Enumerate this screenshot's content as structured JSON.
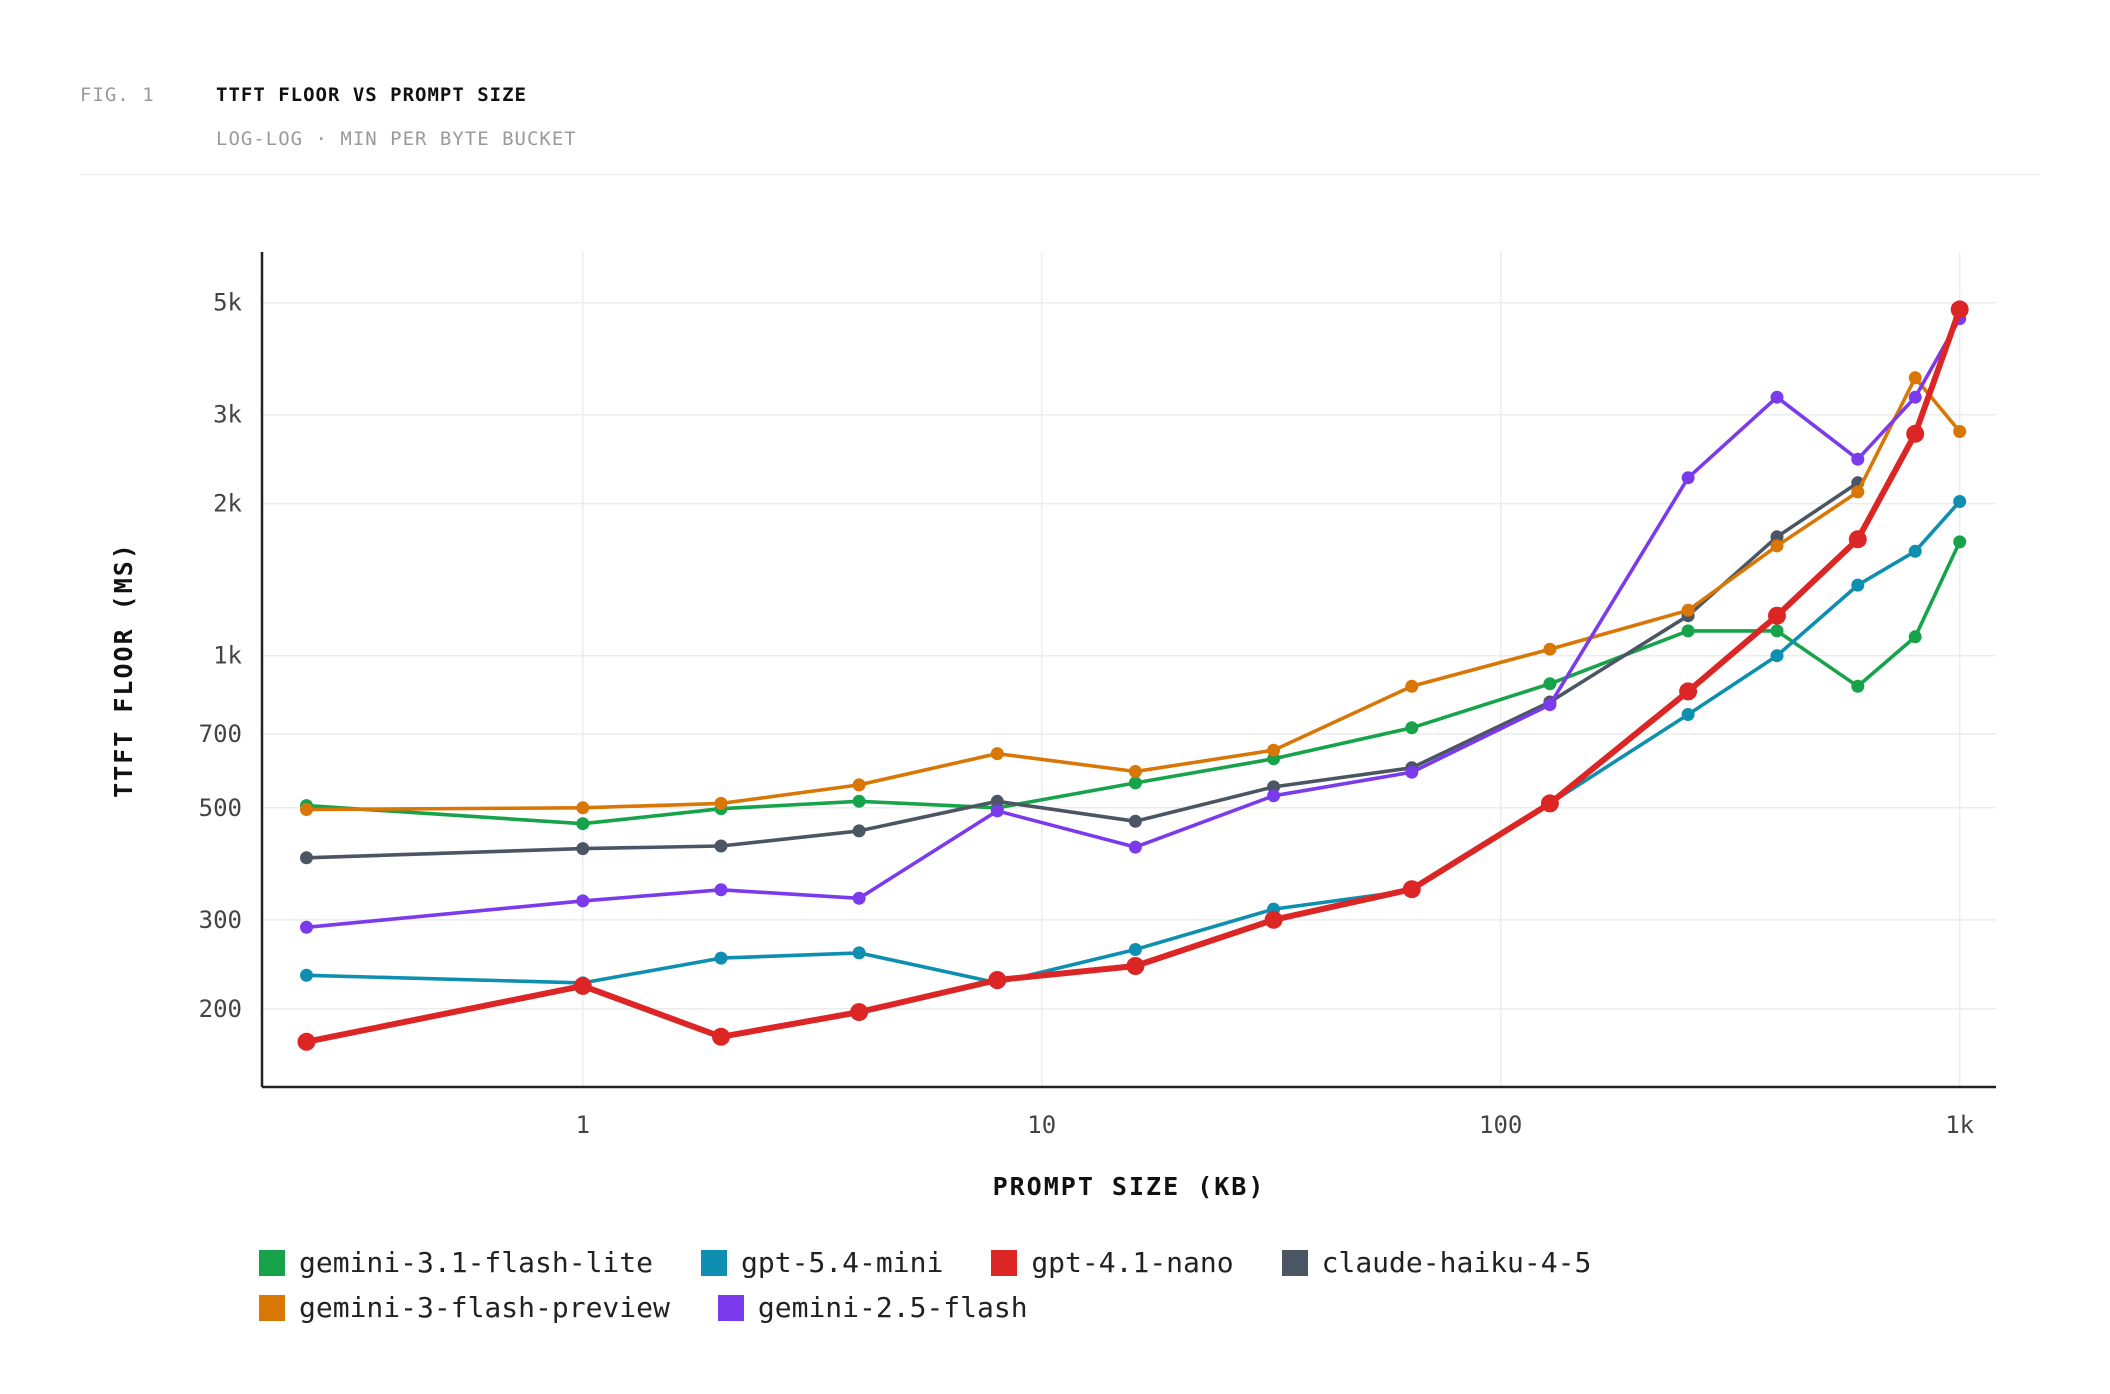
{
  "figure": {
    "label": "FIG. 1",
    "title": "TTFT FLOOR VS PROMPT SIZE",
    "subtitle": "LOG-LOG · MIN PER BYTE BUCKET"
  },
  "chart_data": {
    "type": "line",
    "title": "TTFT FLOOR VS PROMPT SIZE",
    "subtitle": "LOG-LOG · MIN PER BYTE BUCKET",
    "xlabel": "PROMPT SIZE (KB)",
    "ylabel": "TTFT FLOOR (MS)",
    "x_scale": "log",
    "y_scale": "log",
    "xlim": [
      0.2,
      1200
    ],
    "ylim": [
      140,
      6300
    ],
    "x_ticks": [
      {
        "value": 1,
        "label": "1"
      },
      {
        "value": 10,
        "label": "10"
      },
      {
        "value": 100,
        "label": "100"
      },
      {
        "value": 1000,
        "label": "1k"
      }
    ],
    "y_ticks": [
      {
        "value": 200,
        "label": "200"
      },
      {
        "value": 300,
        "label": "300"
      },
      {
        "value": 500,
        "label": "500"
      },
      {
        "value": 700,
        "label": "700"
      },
      {
        "value": 1000,
        "label": "1k"
      },
      {
        "value": 2000,
        "label": "2k"
      },
      {
        "value": 3000,
        "label": "3k"
      },
      {
        "value": 5000,
        "label": "5k"
      }
    ],
    "grid": true,
    "legend_position": "bottom",
    "x": [
      0.25,
      1,
      2,
      4,
      8,
      16,
      32,
      64,
      128,
      256,
      400,
      600,
      800,
      1000
    ],
    "series": [
      {
        "name": "gemini-3.1-flash-lite",
        "color": "#16a34a",
        "highlight": false,
        "values": [
          505,
          465,
          498,
          515,
          500,
          560,
          625,
          720,
          880,
          1120,
          1120,
          870,
          1090,
          1680
        ]
      },
      {
        "name": "gpt-5.4-mini",
        "color": "#0e8fb0",
        "highlight": false,
        "values": [
          233,
          225,
          252,
          258,
          225,
          262,
          315,
          343,
          510,
          765,
          1000,
          1380,
          1610,
          2020
        ]
      },
      {
        "name": "gpt-4.1-nano",
        "color": "#dc2626",
        "highlight": true,
        "values": [
          172,
          222,
          176,
          197,
          228,
          243,
          300,
          345,
          510,
          850,
          1200,
          1700,
          2750,
          4850
        ]
      },
      {
        "name": "claude-haiku-4-5",
        "color": "#4b5563",
        "highlight": false,
        "values": [
          398,
          415,
          420,
          450,
          515,
          470,
          550,
          600,
          810,
          1200,
          1720,
          2200,
          null,
          null
        ]
      },
      {
        "name": "gemini-3-flash-preview",
        "color": "#d97706",
        "highlight": false,
        "values": [
          496,
          500,
          510,
          555,
          640,
          590,
          650,
          870,
          1030,
          1230,
          1650,
          2110,
          3550,
          2780
        ]
      },
      {
        "name": "gemini-2.5-flash",
        "color": "#7c3aed",
        "highlight": false,
        "values": [
          290,
          327,
          344,
          331,
          493,
          418,
          528,
          588,
          800,
          2250,
          3250,
          2450,
          3250,
          4650
        ]
      }
    ]
  }
}
